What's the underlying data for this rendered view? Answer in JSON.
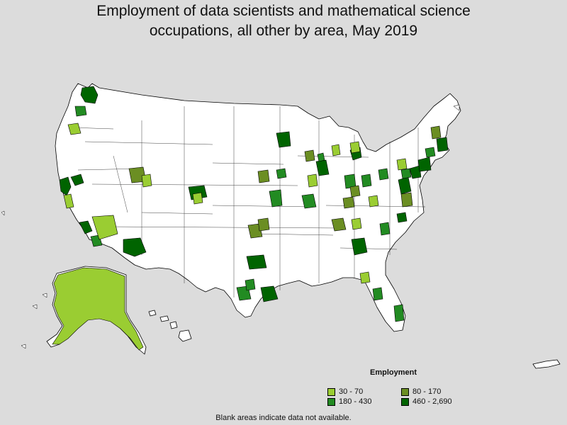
{
  "title_line1": "Employment of data scientists and mathematical science",
  "title_line2": "occupations, all other by area, May 2019",
  "legend": {
    "title": "Employment",
    "items": [
      {
        "label": "30 - 70",
        "color": "#9acd32"
      },
      {
        "label": "80 - 170",
        "color": "#6b8e23"
      },
      {
        "label": "180 - 430",
        "color": "#228b22"
      },
      {
        "label": "460 - 2,690",
        "color": "#006400"
      }
    ]
  },
  "note": "Blank areas indicate data not available.",
  "colors": {
    "background": "#dcdcdc",
    "no_data": "#ffffff",
    "border": "#000000"
  }
}
